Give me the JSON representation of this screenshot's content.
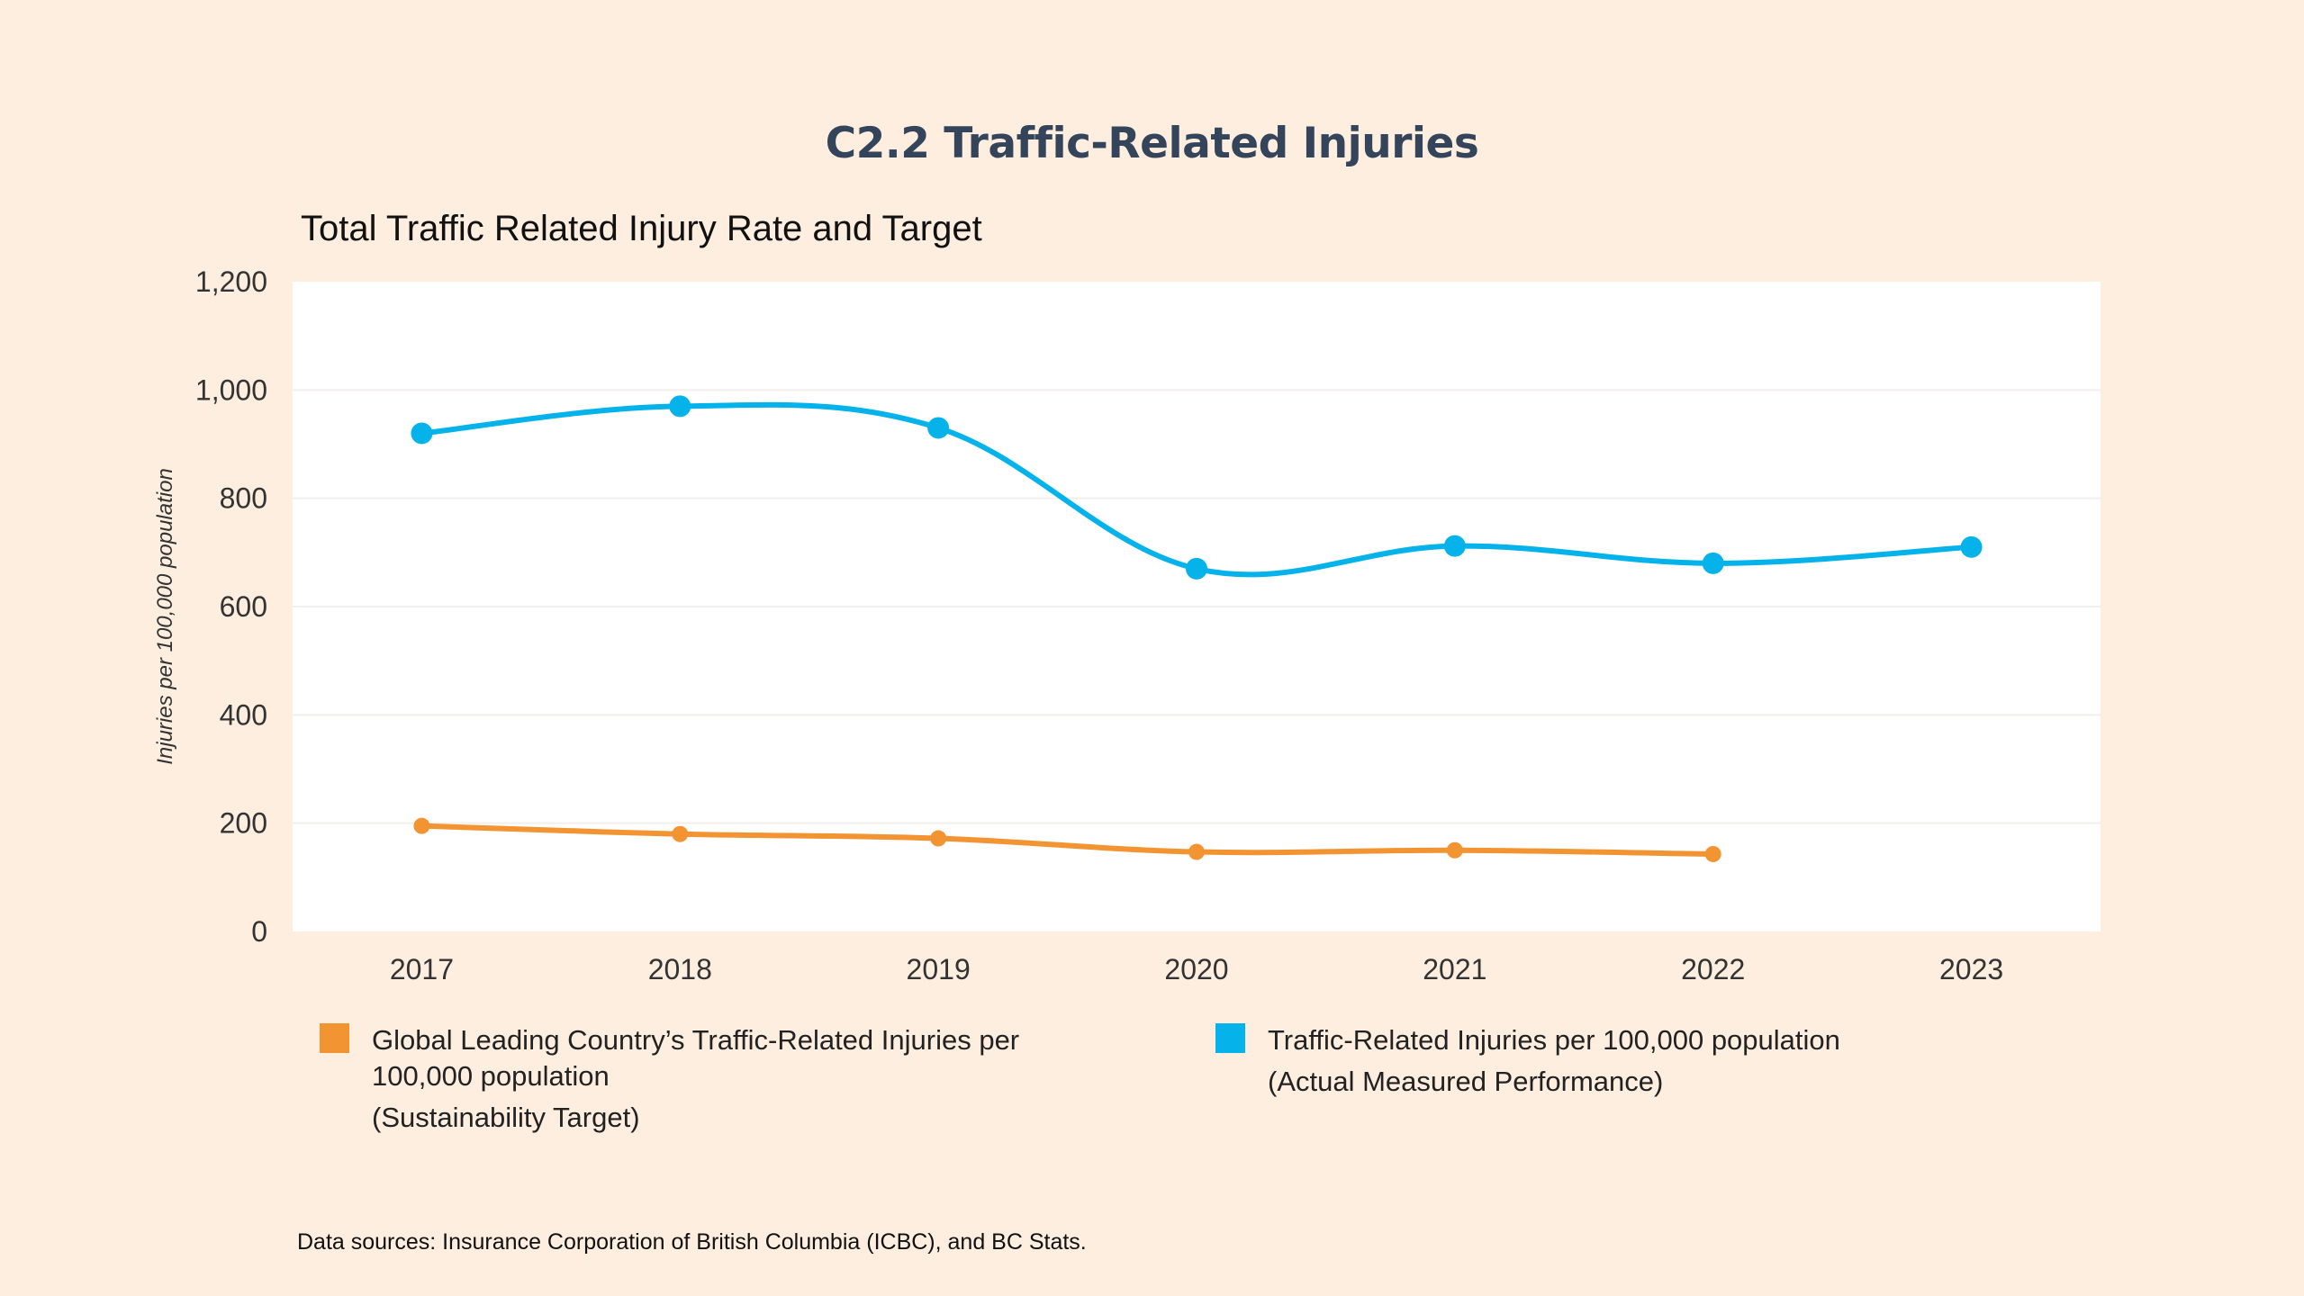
{
  "header": {
    "title": "C2.2 Traffic-Related Injuries",
    "subtitle": "Total Traffic Related Injury Rate and Target"
  },
  "legend": {
    "target": {
      "line1": "Global Leading Country’s Traffic-Related Injuries per",
      "line2": "100,000 population",
      "note": "(Sustainability Target)",
      "color": "#f39433"
    },
    "actual": {
      "line1": "Traffic-Related Injuries per 100,000 population",
      "note": "(Actual Measured Performance)",
      "color": "#05b3ea"
    }
  },
  "footer": {
    "source": "Data sources: Insurance Corporation of British Columbia (ICBC), and BC Stats."
  },
  "chart_data": {
    "type": "line",
    "title": "Total Traffic Related Injury Rate and Target",
    "xlabel": "",
    "ylabel": "Injuries per 100,000 population",
    "categories": [
      "2017",
      "2018",
      "2019",
      "2020",
      "2021",
      "2022",
      "2023"
    ],
    "ylim": [
      0,
      1200
    ],
    "yticks": [
      0,
      200,
      400,
      600,
      800,
      1000,
      1200
    ],
    "ytick_labels": [
      "0",
      "200",
      "400",
      "600",
      "800",
      "1,000",
      "1,200"
    ],
    "grid": true,
    "legend_position": "bottom",
    "series": [
      {
        "name": "Traffic-Related Injuries per 100,000 population (Actual Measured Performance)",
        "color": "#05b3ea",
        "smooth": true,
        "values": [
          920,
          970,
          930,
          670,
          712,
          680,
          710
        ]
      },
      {
        "name": "Global Leading Country’s Traffic-Related Injuries per 100,000 population (Sustainability Target)",
        "color": "#f39433",
        "smooth": true,
        "values": [
          195,
          180,
          172,
          147,
          150,
          143,
          null
        ]
      }
    ]
  }
}
